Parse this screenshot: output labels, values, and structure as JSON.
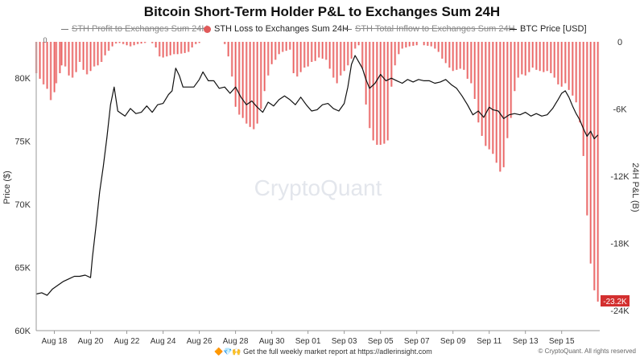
{
  "title": "Bitcoin Short-Term Holder P&L to Exchanges Sum 24H",
  "legend": [
    {
      "label": "STH Profit to Exchanges Sum 24H",
      "active": false,
      "marker": "line"
    },
    {
      "label": "STH Loss to Exchanges Sum 24H",
      "active": true,
      "marker": "dot",
      "color": "#e05a5a"
    },
    {
      "label": "STH Total Inflow to Exchanges Sum 24H",
      "active": false,
      "marker": "line"
    },
    {
      "label": "BTC Price [USD]",
      "active": true,
      "marker": "line",
      "color": "#111111"
    }
  ],
  "watermark": "CryptoQuant",
  "footer": {
    "note": "Get the full weekly market report at https://adlerinsight.com",
    "emoji": "🔶💎🙌",
    "copyright": "© CryptoQuant. All rights reserved"
  },
  "chart_data": {
    "type": "bar+line",
    "y_left": {
      "label": "Price ($)",
      "ticks": [
        "80K",
        "75K",
        "70K",
        "65K",
        "60K"
      ],
      "range": [
        60000,
        82500
      ]
    },
    "y_right": {
      "label": "24H P&L (B)",
      "ticks": [
        "0",
        "-6K",
        "-12K",
        "-18K",
        "-24K"
      ],
      "range": [
        -24000,
        0
      ]
    },
    "x_ticks": [
      "Aug 18",
      "Aug 20",
      "Aug 22",
      "Aug 24",
      "Aug 26",
      "Aug 28",
      "Aug 30",
      "Sep 01",
      "Sep 03",
      "Sep 05",
      "Sep 07",
      "Sep 09",
      "Sep 11",
      "Sep 13",
      "Sep 15"
    ],
    "x_tick_days": [
      1,
      3,
      5,
      7,
      9,
      11,
      13,
      15,
      17,
      19,
      21,
      23,
      25,
      27,
      29
    ],
    "x_range_days": [
      0,
      31.1
    ],
    "top_label": "0",
    "last_value_badge": "-23.2K",
    "series": [
      {
        "name": "STH Loss to Exchanges Sum 24H",
        "kind": "bars",
        "color": "#e05a5a",
        "axis": "right",
        "points": [
          [
            0.0,
            -2800
          ],
          [
            0.2,
            -3300
          ],
          [
            0.4,
            -3800
          ],
          [
            0.6,
            -4200
          ],
          [
            0.8,
            -5200
          ],
          [
            1.0,
            -4500
          ],
          [
            1.1,
            -3700
          ],
          [
            1.3,
            -2800
          ],
          [
            1.4,
            -2100
          ],
          [
            1.6,
            -2200
          ],
          [
            1.8,
            -3000
          ],
          [
            2.0,
            -3200
          ],
          [
            2.2,
            -2700
          ],
          [
            2.4,
            -1800
          ],
          [
            2.6,
            -2500
          ],
          [
            2.8,
            -2900
          ],
          [
            3.0,
            -2600
          ],
          [
            3.2,
            -2200
          ],
          [
            3.4,
            -2100
          ],
          [
            3.6,
            -1800
          ],
          [
            3.8,
            -1200
          ],
          [
            4.0,
            -800
          ],
          [
            4.2,
            -400
          ],
          [
            4.4,
            -150
          ],
          [
            4.6,
            -100
          ],
          [
            4.8,
            -200
          ],
          [
            5.0,
            -300
          ],
          [
            5.2,
            -400
          ],
          [
            5.4,
            -300
          ],
          [
            5.6,
            -200
          ],
          [
            5.8,
            -150
          ],
          [
            6.0,
            -100
          ],
          [
            6.4,
            -120
          ],
          [
            6.6,
            -500
          ],
          [
            6.8,
            -1300
          ],
          [
            7.0,
            -1400
          ],
          [
            7.2,
            -1300
          ],
          [
            7.4,
            -1200
          ],
          [
            7.6,
            -1100
          ],
          [
            7.8,
            -1100
          ],
          [
            8.0,
            -1050
          ],
          [
            8.2,
            -1000
          ],
          [
            8.4,
            -900
          ],
          [
            8.6,
            -500
          ],
          [
            8.8,
            -200
          ],
          [
            9.0,
            -100
          ],
          [
            10.4,
            -200
          ],
          [
            10.6,
            -1300
          ],
          [
            10.8,
            -3100
          ],
          [
            11.0,
            -5800
          ],
          [
            11.2,
            -6500
          ],
          [
            11.4,
            -6800
          ],
          [
            11.6,
            -7300
          ],
          [
            11.8,
            -7600
          ],
          [
            12.0,
            -7800
          ],
          [
            12.2,
            -7300
          ],
          [
            12.4,
            -6000
          ],
          [
            12.6,
            -4400
          ],
          [
            12.8,
            -3000
          ],
          [
            13.0,
            -2000
          ],
          [
            13.2,
            -1600
          ],
          [
            13.4,
            -1100
          ],
          [
            13.6,
            -900
          ],
          [
            13.8,
            -800
          ],
          [
            14.0,
            -700
          ],
          [
            14.2,
            -2800
          ],
          [
            14.4,
            -3100
          ],
          [
            14.6,
            -2700
          ],
          [
            14.8,
            -2300
          ],
          [
            15.0,
            -2200
          ],
          [
            15.2,
            -1800
          ],
          [
            15.4,
            -1700
          ],
          [
            15.6,
            -1400
          ],
          [
            15.8,
            -1500
          ],
          [
            16.0,
            -1600
          ],
          [
            16.2,
            -2400
          ],
          [
            16.4,
            -3200
          ],
          [
            16.6,
            -3700
          ],
          [
            16.8,
            -3000
          ],
          [
            17.0,
            -2600
          ],
          [
            17.2,
            -2100
          ],
          [
            17.4,
            -1500
          ],
          [
            17.6,
            -600
          ],
          [
            17.8,
            -300
          ],
          [
            18.0,
            -2400
          ],
          [
            18.2,
            -5600
          ],
          [
            18.4,
            -7700
          ],
          [
            18.6,
            -8800
          ],
          [
            18.8,
            -9200
          ],
          [
            19.0,
            -9200
          ],
          [
            19.2,
            -9100
          ],
          [
            19.4,
            -8800
          ],
          [
            19.6,
            -4000
          ],
          [
            19.8,
            -2100
          ],
          [
            20.0,
            -1100
          ],
          [
            20.2,
            -600
          ],
          [
            20.4,
            -500
          ],
          [
            20.6,
            -400
          ],
          [
            20.8,
            -350
          ],
          [
            21.0,
            -300
          ],
          [
            21.4,
            -300
          ],
          [
            21.6,
            -350
          ],
          [
            21.8,
            -400
          ],
          [
            22.0,
            -600
          ],
          [
            22.2,
            -900
          ],
          [
            22.4,
            -1500
          ],
          [
            22.6,
            -1900
          ],
          [
            22.8,
            -2300
          ],
          [
            23.0,
            -2600
          ],
          [
            23.2,
            -2500
          ],
          [
            23.4,
            -2400
          ],
          [
            23.6,
            -2500
          ],
          [
            23.8,
            -3300
          ],
          [
            24.0,
            -3700
          ],
          [
            24.2,
            -5100
          ],
          [
            24.4,
            -7200
          ],
          [
            24.6,
            -8400
          ],
          [
            24.8,
            -9300
          ],
          [
            25.0,
            -9600
          ],
          [
            25.2,
            -10000
          ],
          [
            25.4,
            -10800
          ],
          [
            25.6,
            -11600
          ],
          [
            25.8,
            -11200
          ],
          [
            26.0,
            -8600
          ],
          [
            26.2,
            -6800
          ],
          [
            26.4,
            -4400
          ],
          [
            26.6,
            -3200
          ],
          [
            26.8,
            -2900
          ],
          [
            27.0,
            -3000
          ],
          [
            27.2,
            -2700
          ],
          [
            27.4,
            -2300
          ],
          [
            27.6,
            -2500
          ],
          [
            27.8,
            -2600
          ],
          [
            28.0,
            -2700
          ],
          [
            28.2,
            -2600
          ],
          [
            28.4,
            -2800
          ],
          [
            28.6,
            -3200
          ],
          [
            28.8,
            -3800
          ],
          [
            29.0,
            -4000
          ],
          [
            29.2,
            -3700
          ],
          [
            29.4,
            -4300
          ],
          [
            29.6,
            -4800
          ],
          [
            29.8,
            -5400
          ],
          [
            30.0,
            -7200
          ],
          [
            30.2,
            -10200
          ],
          [
            30.4,
            -15500
          ],
          [
            30.6,
            -19800
          ],
          [
            30.8,
            -22200
          ],
          [
            31.0,
            -23200
          ]
        ]
      },
      {
        "name": "BTC Price [USD]",
        "kind": "line",
        "color": "#111111",
        "axis": "left",
        "points": [
          [
            0.0,
            62900
          ],
          [
            0.3,
            63000
          ],
          [
            0.6,
            62800
          ],
          [
            0.9,
            63300
          ],
          [
            1.2,
            63600
          ],
          [
            1.5,
            63900
          ],
          [
            1.8,
            64100
          ],
          [
            2.1,
            64300
          ],
          [
            2.4,
            64300
          ],
          [
            2.7,
            64400
          ],
          [
            3.0,
            64200
          ],
          [
            3.1,
            65800
          ],
          [
            3.3,
            68300
          ],
          [
            3.5,
            71000
          ],
          [
            3.7,
            73000
          ],
          [
            3.9,
            75300
          ],
          [
            4.1,
            77900
          ],
          [
            4.3,
            79300
          ],
          [
            4.5,
            77400
          ],
          [
            4.7,
            77200
          ],
          [
            4.9,
            77000
          ],
          [
            5.2,
            77600
          ],
          [
            5.5,
            77200
          ],
          [
            5.8,
            77300
          ],
          [
            6.1,
            77800
          ],
          [
            6.4,
            77300
          ],
          [
            6.7,
            77900
          ],
          [
            7.0,
            78000
          ],
          [
            7.3,
            78700
          ],
          [
            7.5,
            79000
          ],
          [
            7.7,
            80800
          ],
          [
            7.9,
            80200
          ],
          [
            8.1,
            79300
          ],
          [
            8.4,
            79300
          ],
          [
            8.7,
            79300
          ],
          [
            9.0,
            79900
          ],
          [
            9.2,
            80500
          ],
          [
            9.5,
            79800
          ],
          [
            9.8,
            79800
          ],
          [
            10.1,
            79200
          ],
          [
            10.4,
            79300
          ],
          [
            10.7,
            78800
          ],
          [
            11.0,
            79300
          ],
          [
            11.3,
            78500
          ],
          [
            11.6,
            77900
          ],
          [
            11.9,
            78200
          ],
          [
            12.2,
            77700
          ],
          [
            12.5,
            77300
          ],
          [
            12.8,
            78100
          ],
          [
            13.1,
            77800
          ],
          [
            13.4,
            78300
          ],
          [
            13.7,
            78600
          ],
          [
            14.0,
            78300
          ],
          [
            14.3,
            77900
          ],
          [
            14.6,
            78500
          ],
          [
            14.9,
            77900
          ],
          [
            15.2,
            77400
          ],
          [
            15.5,
            77500
          ],
          [
            15.8,
            77900
          ],
          [
            16.1,
            78000
          ],
          [
            16.4,
            77600
          ],
          [
            16.7,
            77400
          ],
          [
            17.0,
            78000
          ],
          [
            17.2,
            79300
          ],
          [
            17.4,
            81100
          ],
          [
            17.6,
            81800
          ],
          [
            17.8,
            81300
          ],
          [
            18.0,
            80800
          ],
          [
            18.2,
            79900
          ],
          [
            18.4,
            79200
          ],
          [
            18.7,
            79600
          ],
          [
            19.0,
            80300
          ],
          [
            19.3,
            79800
          ],
          [
            19.6,
            80000
          ],
          [
            19.9,
            79800
          ],
          [
            20.2,
            79600
          ],
          [
            20.5,
            79900
          ],
          [
            20.8,
            79700
          ],
          [
            21.1,
            79900
          ],
          [
            21.4,
            79800
          ],
          [
            21.7,
            79800
          ],
          [
            22.0,
            79600
          ],
          [
            22.3,
            79700
          ],
          [
            22.6,
            79900
          ],
          [
            22.9,
            79500
          ],
          [
            23.2,
            79200
          ],
          [
            23.5,
            78600
          ],
          [
            23.8,
            77900
          ],
          [
            24.1,
            77100
          ],
          [
            24.4,
            77400
          ],
          [
            24.7,
            76900
          ],
          [
            25.0,
            77700
          ],
          [
            25.2,
            77500
          ],
          [
            25.5,
            77400
          ],
          [
            25.8,
            76800
          ],
          [
            26.1,
            77100
          ],
          [
            26.4,
            77200
          ],
          [
            26.7,
            77100
          ],
          [
            27.0,
            77300
          ],
          [
            27.3,
            77000
          ],
          [
            27.6,
            77200
          ],
          [
            27.9,
            77000
          ],
          [
            28.2,
            77100
          ],
          [
            28.5,
            77600
          ],
          [
            28.8,
            78300
          ],
          [
            29.0,
            78800
          ],
          [
            29.2,
            79000
          ],
          [
            29.4,
            78500
          ],
          [
            29.6,
            77800
          ],
          [
            29.8,
            77200
          ],
          [
            30.0,
            76700
          ],
          [
            30.2,
            76000
          ],
          [
            30.4,
            75400
          ],
          [
            30.6,
            75800
          ],
          [
            30.8,
            75200
          ],
          [
            31.0,
            75500
          ]
        ]
      }
    ]
  }
}
